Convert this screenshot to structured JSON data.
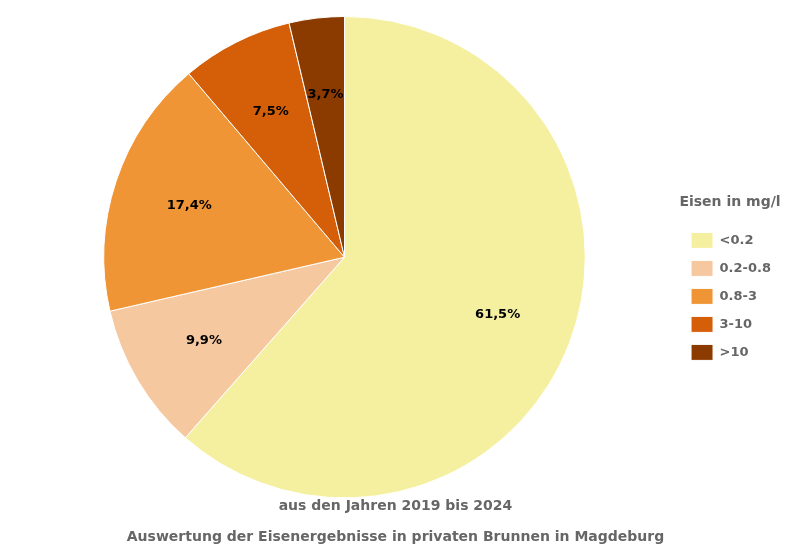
{
  "chart_data": {
    "type": "pie",
    "title": "Auswertung der Eisenergebnisse in privaten Brunnen in Magdeburg",
    "subtitle": "aus den Jahren 2019 bis 2024",
    "categories": [
      "<0.2",
      "0.2-0.8",
      "0.8-3",
      "3-10",
      ">10"
    ],
    "values": [
      61.5,
      9.9,
      17.4,
      7.5,
      3.7
    ],
    "value_labels": [
      "61,5%",
      "9,9%",
      "17,4%",
      "7,5%",
      "3,7%"
    ],
    "colors": [
      "#F5F0A0",
      "#F5C8A0",
      "#F09535",
      "#D45F08",
      "#8B3A00"
    ],
    "legend": "right",
    "legend_title": "Eisen in mg/l",
    "data_labels": true
  }
}
